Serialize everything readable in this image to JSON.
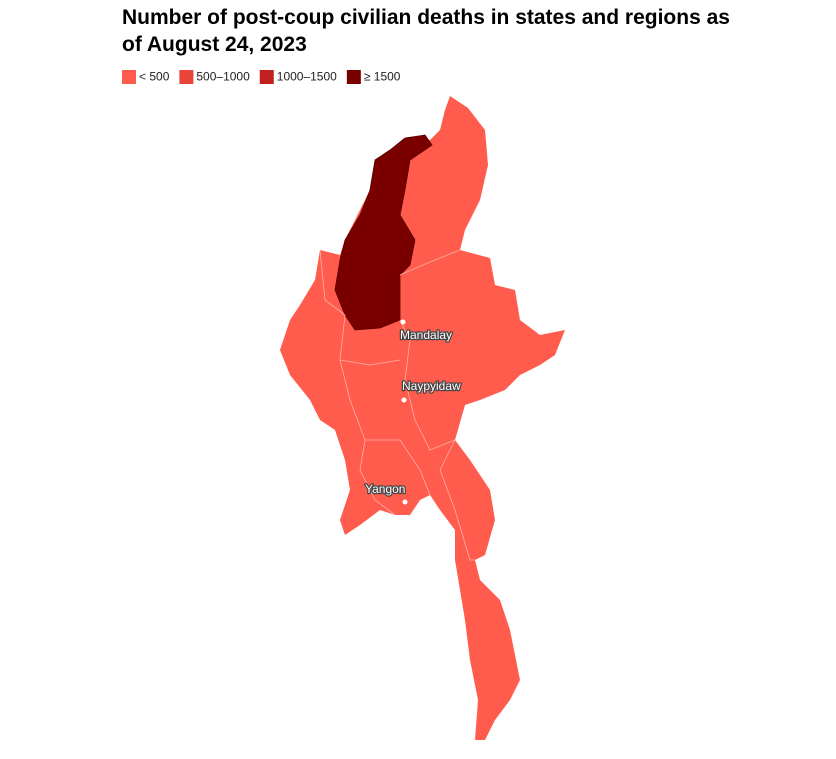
{
  "header": {
    "title_line1": "Number of post-coup civilian deaths in states and regions as",
    "title_line2": "of August 24, 2023"
  },
  "legend": [
    {
      "label": "< 500",
      "color": "#ff5c4d"
    },
    {
      "label": "500–1000",
      "color": "#e8453a"
    },
    {
      "label": "1000–1500",
      "color": "#c21f1f"
    },
    {
      "label": "≥ 1500",
      "color": "#7a0000"
    }
  ],
  "cities": [
    {
      "label": "Mandalay"
    },
    {
      "label": "Naypyidaw"
    },
    {
      "label": "Yangon"
    }
  ]
}
